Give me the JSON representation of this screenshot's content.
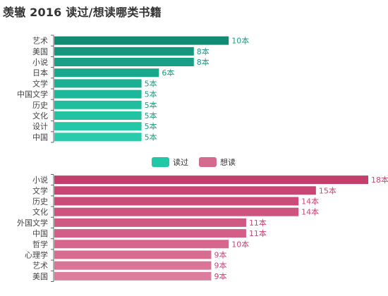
{
  "title": "羡辙 2016 读过/想读哪类书籍",
  "legend": [
    {
      "label": "读过",
      "color": "#22c7a6"
    },
    {
      "label": "想读",
      "color": "#d46b8e"
    }
  ],
  "chart_data": [
    {
      "type": "bar",
      "orientation": "horizontal",
      "series_name": "读过",
      "categories": [
        "艺术",
        "美国",
        "小说",
        "日本",
        "文学",
        "中国文学",
        "历史",
        "文化",
        "设计",
        "中国"
      ],
      "values": [
        10,
        8,
        8,
        6,
        5,
        5,
        5,
        5,
        5,
        5
      ],
      "value_labels": [
        "10本",
        "8本",
        "8本",
        "6本",
        "5本",
        "5本",
        "5本",
        "5本",
        "5本",
        "5本"
      ],
      "colors": [
        "#138a72",
        "#16967c",
        "#189f85",
        "#1aa88c",
        "#1cb093",
        "#1eb799",
        "#20bd9e",
        "#22c2a2",
        "#24c7a6",
        "#26ccab"
      ],
      "value_max": 18
    },
    {
      "type": "bar",
      "orientation": "horizontal",
      "series_name": "想读",
      "categories": [
        "小说",
        "文学",
        "历史",
        "文化",
        "外国文学",
        "中国",
        "哲学",
        "心理学",
        "艺术",
        "美国"
      ],
      "values": [
        18,
        15,
        14,
        14,
        11,
        11,
        10,
        9,
        9,
        9
      ],
      "value_labels": [
        "18本",
        "15本",
        "14本",
        "14本",
        "11本",
        "11本",
        "10本",
        "9本",
        "9本",
        "9本"
      ],
      "colors": [
        "#c43e6c",
        "#c84574",
        "#cb4c79",
        "#ce537e",
        "#d05983",
        "#d35f88",
        "#d6668d",
        "#d86d92",
        "#da7597",
        "#dd7d9d"
      ],
      "value_max": 18
    }
  ]
}
